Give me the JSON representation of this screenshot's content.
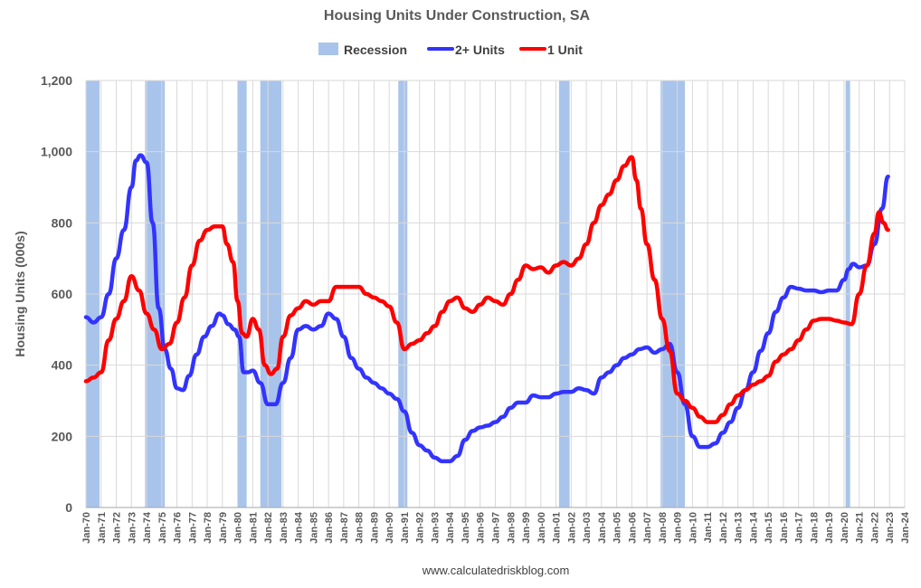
{
  "chart_data": {
    "type": "line",
    "title": "Housing Units Under Construction, SA",
    "ylabel": "Housing Units (000s)",
    "xlabel": "",
    "ylim": [
      0,
      1200
    ],
    "xlim": [
      1970,
      2024
    ],
    "yticks": [
      0,
      200,
      400,
      600,
      800,
      1000,
      1200
    ],
    "ytick_labels": [
      "0",
      "200",
      "400",
      "600",
      "800",
      "1,000",
      "1,200"
    ],
    "xtick_labels": [
      "Jan-70",
      "Jan-71",
      "Jan-72",
      "Jan-73",
      "Jan-74",
      "Jan-75",
      "Jan-76",
      "Jan-77",
      "Jan-78",
      "Jan-79",
      "Jan-80",
      "Jan-81",
      "Jan-82",
      "Jan-83",
      "Jan-84",
      "Jan-85",
      "Jan-86",
      "Jan-87",
      "Jan-88",
      "Jan-89",
      "Jan-90",
      "Jan-91",
      "Jan-92",
      "Jan-93",
      "Jan-94",
      "Jan-95",
      "Jan-96",
      "Jan-97",
      "Jan-98",
      "Jan-99",
      "Jan-00",
      "Jan-01",
      "Jan-02",
      "Jan-03",
      "Jan-04",
      "Jan-05",
      "Jan-06",
      "Jan-07",
      "Jan-08",
      "Jan-09",
      "Jan-10",
      "Jan-11",
      "Jan-12",
      "Jan-13",
      "Jan-14",
      "Jan-15",
      "Jan-16",
      "Jan-17",
      "Jan-18",
      "Jan-19",
      "Jan-20",
      "Jan-21",
      "Jan-22",
      "Jan-23",
      "Jan-24"
    ],
    "grid": true,
    "legend": {
      "placement": "top-center",
      "entries": [
        "Recession",
        "2+ Units",
        "1 Unit"
      ]
    },
    "recessions": [
      {
        "start": 1970.0,
        "end": 1970.9
      },
      {
        "start": 1973.9,
        "end": 1975.2
      },
      {
        "start": 1980.0,
        "end": 1980.6
      },
      {
        "start": 1981.5,
        "end": 1982.9
      },
      {
        "start": 1990.6,
        "end": 1991.2
      },
      {
        "start": 2001.2,
        "end": 2001.9
      },
      {
        "start": 2007.9,
        "end": 2009.5
      },
      {
        "start": 2020.1,
        "end": 2020.4
      }
    ],
    "series": [
      {
        "name": "2+ Units",
        "color": "#3333ff",
        "x": [
          1970.0,
          1970.5,
          1971.0,
          1971.5,
          1972.0,
          1972.5,
          1973.0,
          1973.3,
          1973.6,
          1974.0,
          1974.4,
          1974.8,
          1975.2,
          1975.6,
          1976.0,
          1976.4,
          1976.8,
          1977.3,
          1977.8,
          1978.3,
          1978.8,
          1979.0,
          1979.4,
          1979.8,
          1980.1,
          1980.4,
          1980.7,
          1981.0,
          1981.5,
          1982.0,
          1982.5,
          1983.0,
          1983.5,
          1984.0,
          1984.5,
          1985.0,
          1985.5,
          1986.0,
          1986.5,
          1987.0,
          1987.5,
          1988.0,
          1988.5,
          1989.0,
          1989.5,
          1990.0,
          1990.5,
          1991.0,
          1991.5,
          1992.0,
          1992.5,
          1993.0,
          1993.5,
          1994.0,
          1994.5,
          1995.0,
          1995.5,
          1996.0,
          1996.5,
          1997.0,
          1997.5,
          1998.0,
          1998.5,
          1999.0,
          1999.5,
          2000.0,
          2000.5,
          2001.0,
          2001.5,
          2002.0,
          2002.5,
          2003.0,
          2003.5,
          2004.0,
          2004.5,
          2005.0,
          2005.5,
          2006.0,
          2006.5,
          2007.0,
          2007.5,
          2008.0,
          2008.5,
          2009.0,
          2009.5,
          2010.0,
          2010.5,
          2011.0,
          2011.5,
          2012.0,
          2012.5,
          2013.0,
          2013.5,
          2014.0,
          2014.5,
          2015.0,
          2015.5,
          2016.0,
          2016.5,
          2017.0,
          2017.5,
          2018.0,
          2018.5,
          2019.0,
          2019.5,
          2020.0,
          2020.3,
          2020.6,
          2021.0,
          2021.5,
          2022.0,
          2022.5,
          2022.9
        ],
        "values": [
          535,
          520,
          535,
          600,
          700,
          780,
          900,
          975,
          990,
          970,
          800,
          560,
          445,
          390,
          335,
          330,
          370,
          430,
          480,
          510,
          545,
          540,
          515,
          500,
          480,
          380,
          380,
          385,
          350,
          290,
          290,
          350,
          420,
          500,
          510,
          500,
          510,
          545,
          530,
          480,
          420,
          390,
          365,
          350,
          335,
          320,
          305,
          270,
          210,
          175,
          160,
          140,
          130,
          130,
          145,
          190,
          215,
          225,
          230,
          240,
          255,
          280,
          295,
          295,
          315,
          310,
          310,
          320,
          325,
          325,
          335,
          330,
          320,
          365,
          380,
          400,
          420,
          430,
          445,
          450,
          435,
          445,
          460,
          380,
          290,
          200,
          170,
          170,
          180,
          210,
          240,
          280,
          330,
          380,
          440,
          490,
          550,
          590,
          620,
          615,
          610,
          610,
          605,
          610,
          610,
          640,
          670,
          685,
          675,
          680,
          740,
          840,
          930
        ]
      },
      {
        "name": "1 Unit",
        "color": "#ff0000",
        "x": [
          1970.0,
          1970.5,
          1971.0,
          1971.5,
          1972.0,
          1972.5,
          1973.0,
          1973.5,
          1974.0,
          1974.5,
          1975.0,
          1975.5,
          1976.0,
          1976.5,
          1977.0,
          1977.5,
          1978.0,
          1978.5,
          1979.0,
          1979.3,
          1979.7,
          1980.0,
          1980.3,
          1980.6,
          1981.0,
          1981.4,
          1981.8,
          1982.2,
          1982.6,
          1983.0,
          1983.5,
          1984.0,
          1984.5,
          1985.0,
          1985.5,
          1986.0,
          1986.5,
          1987.0,
          1987.5,
          1988.0,
          1988.5,
          1989.0,
          1989.5,
          1990.0,
          1990.5,
          1991.0,
          1991.5,
          1992.0,
          1992.5,
          1993.0,
          1993.5,
          1994.0,
          1994.5,
          1995.0,
          1995.5,
          1996.0,
          1996.5,
          1997.0,
          1997.5,
          1998.0,
          1998.5,
          1999.0,
          1999.5,
          2000.0,
          2000.5,
          2001.0,
          2001.5,
          2002.0,
          2002.5,
          2003.0,
          2003.5,
          2004.0,
          2004.5,
          2005.0,
          2005.5,
          2006.0,
          2006.3,
          2006.6,
          2007.0,
          2007.5,
          2008.0,
          2008.5,
          2009.0,
          2009.5,
          2010.0,
          2010.5,
          2011.0,
          2011.5,
          2012.0,
          2012.5,
          2013.0,
          2013.5,
          2014.0,
          2014.5,
          2015.0,
          2015.5,
          2016.0,
          2016.5,
          2017.0,
          2017.5,
          2018.0,
          2018.5,
          2019.0,
          2019.5,
          2020.0,
          2020.5,
          2021.0,
          2021.5,
          2022.0,
          2022.3,
          2022.6,
          2022.9
        ],
        "values": [
          355,
          365,
          380,
          470,
          530,
          580,
          650,
          610,
          545,
          500,
          445,
          460,
          520,
          590,
          680,
          750,
          780,
          790,
          790,
          740,
          690,
          580,
          490,
          480,
          530,
          500,
          400,
          375,
          390,
          480,
          540,
          560,
          580,
          570,
          580,
          580,
          620,
          620,
          620,
          620,
          600,
          590,
          580,
          565,
          520,
          445,
          460,
          470,
          490,
          510,
          550,
          580,
          590,
          560,
          550,
          570,
          590,
          580,
          570,
          600,
          640,
          680,
          670,
          675,
          660,
          680,
          690,
          680,
          700,
          740,
          800,
          850,
          880,
          920,
          960,
          985,
          920,
          840,
          740,
          640,
          530,
          440,
          320,
          300,
          280,
          255,
          240,
          240,
          260,
          290,
          315,
          330,
          345,
          355,
          370,
          410,
          430,
          445,
          470,
          500,
          525,
          530,
          530,
          525,
          520,
          515,
          600,
          680,
          770,
          830,
          800,
          780
        ]
      }
    ]
  },
  "legend": {
    "recession_label": "Recession",
    "multi_label": "2+ Units",
    "single_label": "1 Unit",
    "recession_color": "#a9c4eb",
    "multi_color": "#3333ff",
    "single_color": "#ff0000"
  },
  "source": "www.calculatedriskblog.com"
}
